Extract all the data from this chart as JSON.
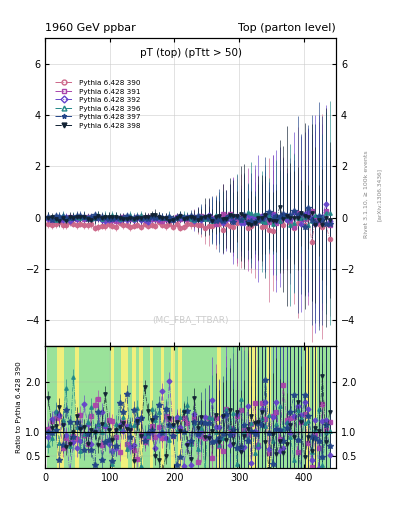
{
  "title_left": "1960 GeV ppbar",
  "title_right": "Top (parton level)",
  "plot_title": "pT (top) (pTtt > 50)",
  "watermark": "(MC_FBA_TTBAR)",
  "rivet_label": "Rivet 3.1.10, ≥ 100k events",
  "arxiv_label": "[arXiv:1306.3436]",
  "series": [
    {
      "label": "Pythia 6.428 390",
      "color": "#cc6688",
      "marker": "o",
      "linestyle": "-."
    },
    {
      "label": "Pythia 6.428 391",
      "color": "#aa44aa",
      "marker": "s",
      "linestyle": "-."
    },
    {
      "label": "Pythia 6.428 392",
      "color": "#6644cc",
      "marker": "D",
      "linestyle": "-."
    },
    {
      "label": "Pythia 6.428 396",
      "color": "#228888",
      "marker": "^",
      "linestyle": "-."
    },
    {
      "label": "Pythia 6.428 397",
      "color": "#224488",
      "marker": "*",
      "linestyle": "-."
    },
    {
      "label": "Pythia 6.428 398",
      "color": "#112233",
      "marker": "v",
      "linestyle": "-."
    }
  ],
  "main_ylim": [
    -5.0,
    7.0
  ],
  "main_yticks": [
    -4,
    -2,
    0,
    2,
    4,
    6
  ],
  "ratio_ylim": [
    0.25,
    2.75
  ],
  "ratio_yticks": [
    0.5,
    1,
    2
  ],
  "xlim": [
    0,
    450
  ],
  "xticks": [
    0,
    100,
    200,
    300,
    400
  ],
  "bg_color": "#ffffff",
  "ratio_green_color": "#88dd88",
  "ratio_yellow_color": "#eeee66"
}
